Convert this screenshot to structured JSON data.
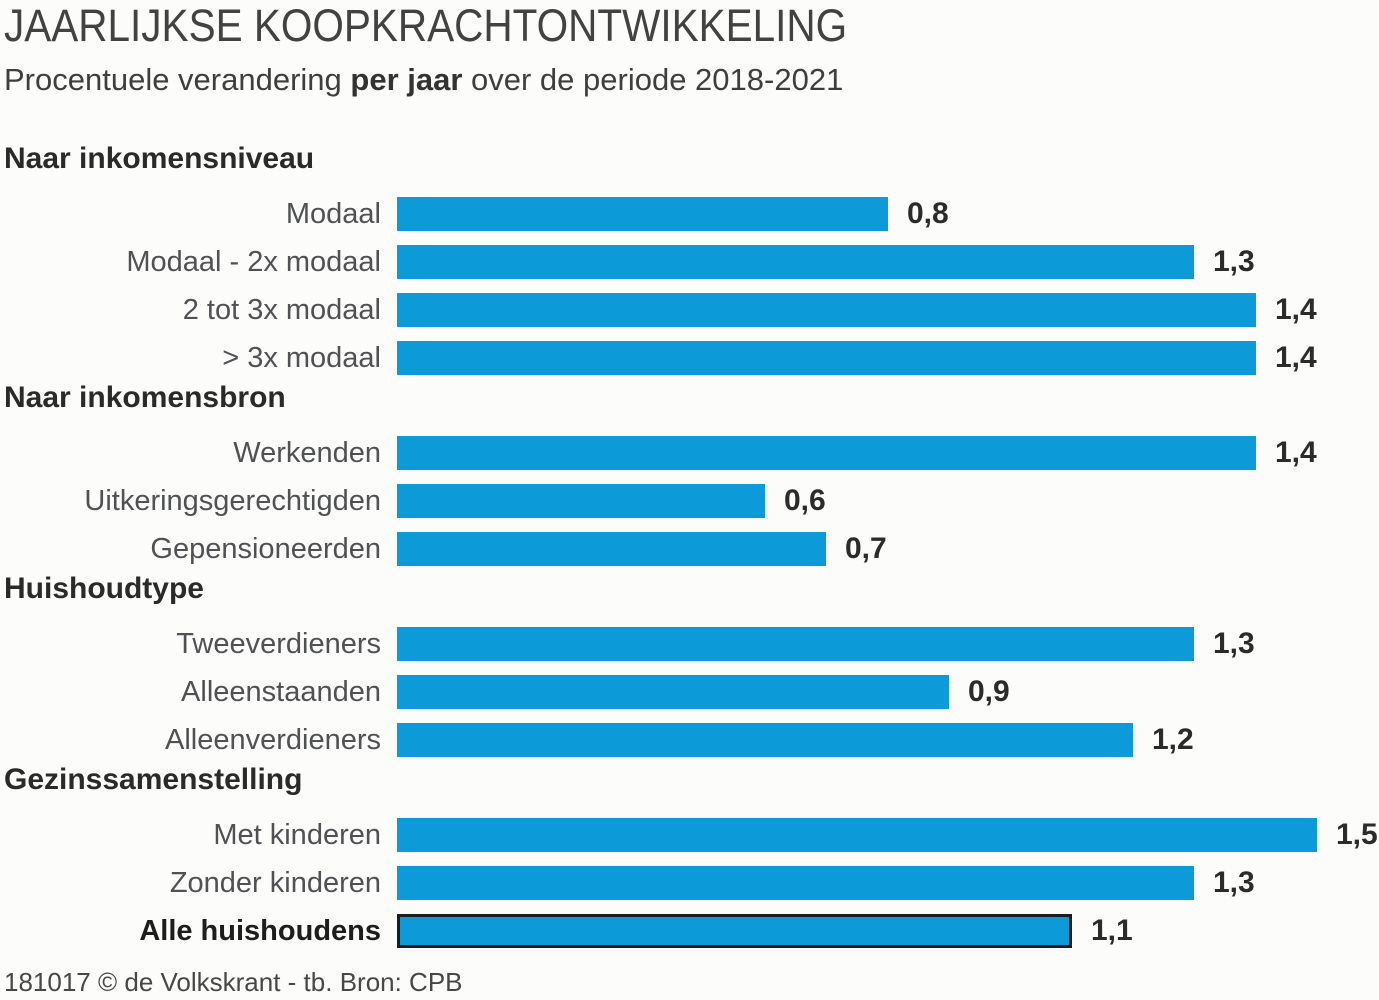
{
  "header": {
    "title": "JAARLIJKSE KOOPKRACHTONTWIKKELING",
    "subtitle_prefix": "Procentuele verandering ",
    "subtitle_bold": "per jaar",
    "subtitle_suffix": " over de periode 2018-2021"
  },
  "chart_data": {
    "type": "bar",
    "orientation": "horizontal",
    "title": "JAARLIJKSE KOOPKRACHTONTWIKKELING",
    "subtitle": "Procentuele verandering per jaar over de periode 2018-2021",
    "unit": "percent change per year",
    "xlim": [
      0,
      1.5
    ],
    "grid": false,
    "bar_color": "#0c9ad8",
    "outline_color": "#1d1d1b",
    "sections": [
      {
        "header": "Naar inkomensniveau",
        "rows": [
          {
            "label": "Modaal",
            "value": 0.8,
            "display": "0,8"
          },
          {
            "label": "Modaal - 2x modaal",
            "value": 1.3,
            "display": "1,3"
          },
          {
            "label": "2 tot 3x modaal",
            "value": 1.4,
            "display": "1,4"
          },
          {
            "label": "> 3x modaal",
            "value": 1.4,
            "display": "1,4"
          }
        ]
      },
      {
        "header": "Naar inkomensbron",
        "rows": [
          {
            "label": "Werkenden",
            "value": 1.4,
            "display": "1,4"
          },
          {
            "label": "Uitkeringsgerechtigden",
            "value": 0.6,
            "display": "0,6"
          },
          {
            "label": "Gepensioneerden",
            "value": 0.7,
            "display": "0,7"
          }
        ]
      },
      {
        "header": "Huishoudtype",
        "rows": [
          {
            "label": "Tweeverdieners",
            "value": 1.3,
            "display": "1,3"
          },
          {
            "label": "Alleenstaanden",
            "value": 0.9,
            "display": "0,9"
          },
          {
            "label": "Alleenverdieners",
            "value": 1.2,
            "display": "1,2"
          }
        ]
      },
      {
        "header": "Gezinssamenstelling",
        "rows": [
          {
            "label": "Met kinderen",
            "value": 1.5,
            "display": "1,5"
          },
          {
            "label": "Zonder kinderen",
            "value": 1.3,
            "display": "1,3"
          },
          {
            "label": "Alle huishoudens",
            "value": 1.1,
            "display": "1,1",
            "emphasis": true,
            "outlined": true
          }
        ]
      }
    ]
  },
  "footer": {
    "credit": "181017 © de Volkskrant - tb. Bron: CPB"
  }
}
